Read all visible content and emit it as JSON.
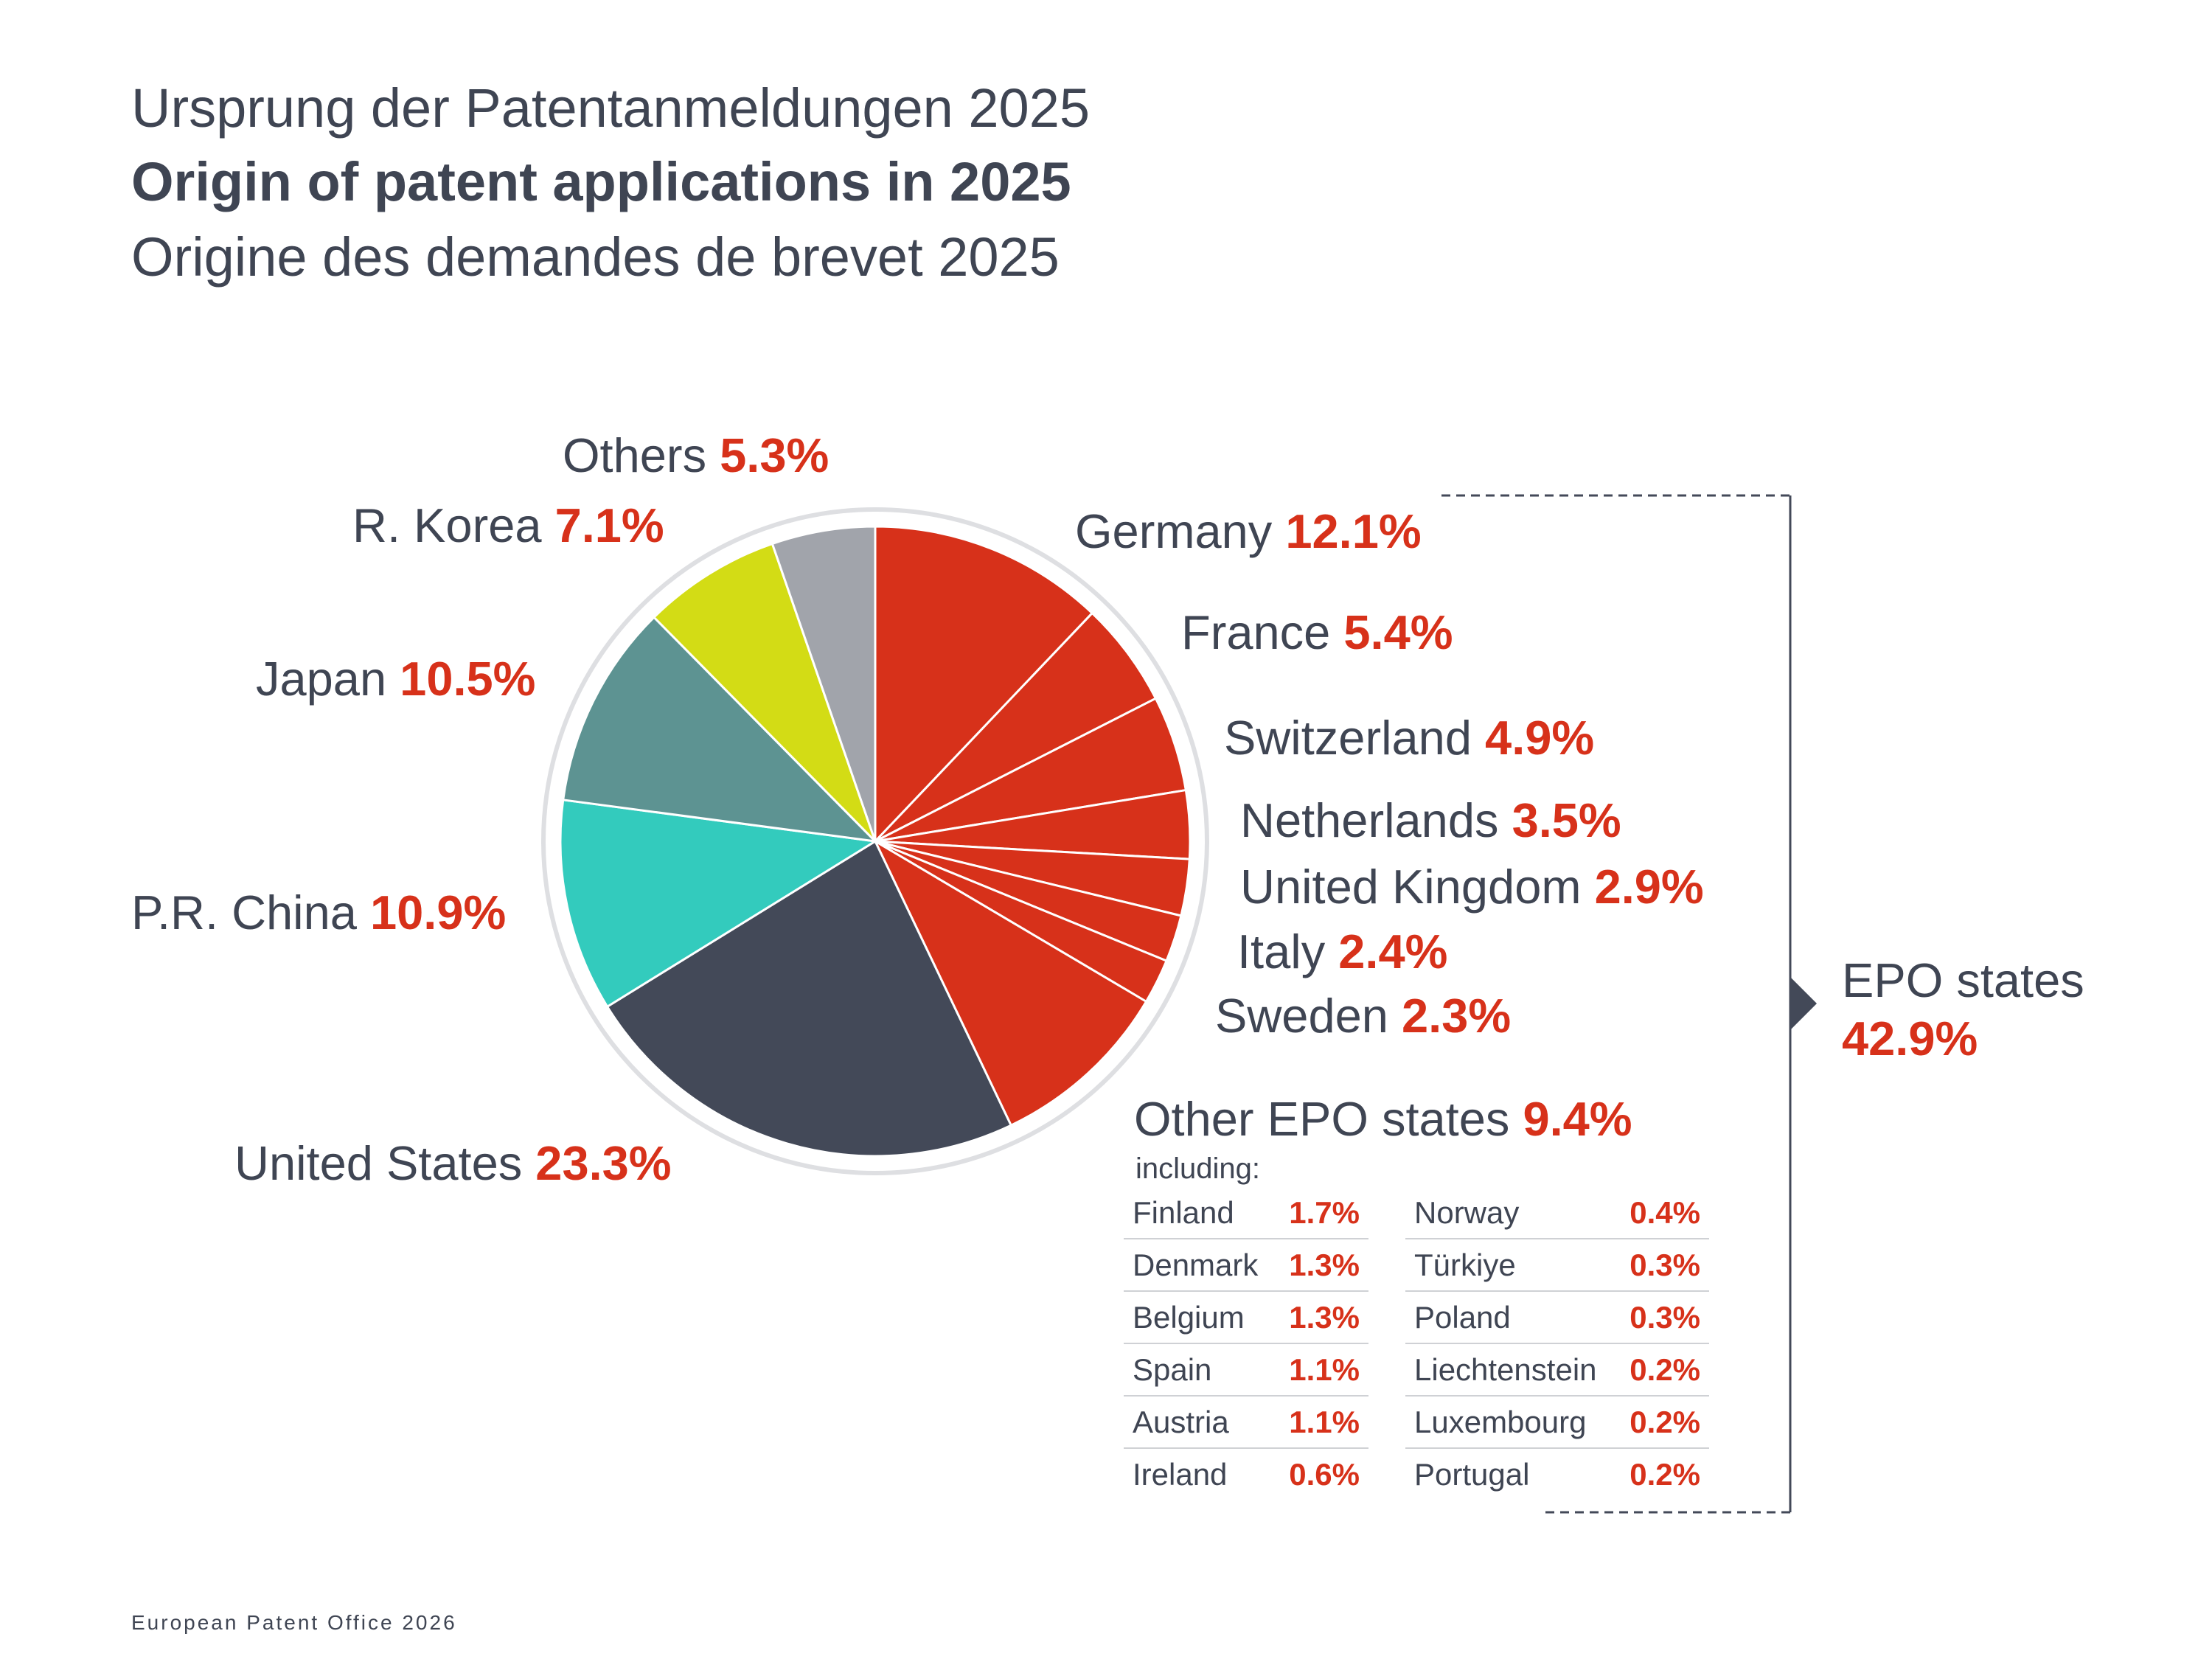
{
  "titles": {
    "german": "Ursprung der Patentanmeldungen 2025",
    "english": "Origin of patent applications in 2025",
    "french": "Origine des demandes de brevet 2025"
  },
  "chart_data": {
    "type": "pie",
    "title": "Origin of patent applications in 2025",
    "unit": "%",
    "slices": [
      {
        "label": "Germany",
        "value": 12.1,
        "display": "12.1%",
        "color": "#d7311a"
      },
      {
        "label": "France",
        "value": 5.4,
        "display": "5.4%",
        "color": "#d7311a"
      },
      {
        "label": "Switzerland",
        "value": 4.9,
        "display": "4.9%",
        "color": "#d7311a"
      },
      {
        "label": "Netherlands",
        "value": 3.5,
        "display": "3.5%",
        "color": "#d7311a"
      },
      {
        "label": "United Kingdom",
        "value": 2.9,
        "display": "2.9%",
        "color": "#d7311a"
      },
      {
        "label": "Italy",
        "value": 2.4,
        "display": "2.4%",
        "color": "#d7311a"
      },
      {
        "label": "Sweden",
        "value": 2.3,
        "display": "2.3%",
        "color": "#d7311a"
      },
      {
        "label": "Other EPO states",
        "value": 9.4,
        "display": "9.4%",
        "color": "#d7311a"
      },
      {
        "label": "United States",
        "value": 23.3,
        "display": "23.3%",
        "color": "#434958"
      },
      {
        "label": "P.R. China",
        "value": 10.9,
        "display": "10.9%",
        "color": "#33cbbd"
      },
      {
        "label": "Japan",
        "value": 10.5,
        "display": "10.5%",
        "color": "#5d9392"
      },
      {
        "label": "R. Korea",
        "value": 7.1,
        "display": "7.1%",
        "color": "#d3dc15"
      },
      {
        "label": "Others",
        "value": 5.3,
        "display": "5.3%",
        "color": "#a1a4ab"
      }
    ],
    "group": {
      "label": "EPO states",
      "value": 42.9,
      "display": "42.9%"
    },
    "other_epo_breakdown": {
      "intro": "including:",
      "left": [
        {
          "country": "Finland",
          "value": "1.7%"
        },
        {
          "country": "Denmark",
          "value": "1.3%"
        },
        {
          "country": "Belgium",
          "value": "1.3%"
        },
        {
          "country": "Spain",
          "value": "1.1%"
        },
        {
          "country": "Austria",
          "value": "1.1%"
        },
        {
          "country": "Ireland",
          "value": "0.6%"
        }
      ],
      "right": [
        {
          "country": "Norway",
          "value": "0.4%"
        },
        {
          "country": "Türkiye",
          "value": "0.3%"
        },
        {
          "country": "Poland",
          "value": "0.3%"
        },
        {
          "country": "Liechtenstein",
          "value": "0.2%"
        },
        {
          "country": "Luxembourg",
          "value": "0.2%"
        },
        {
          "country": "Portugal",
          "value": "0.2%"
        }
      ]
    },
    "colors": {
      "accent": "#d7311a",
      "text": "#3f4553",
      "bracket": "#434958"
    }
  },
  "footer": "European Patent Office 2026"
}
